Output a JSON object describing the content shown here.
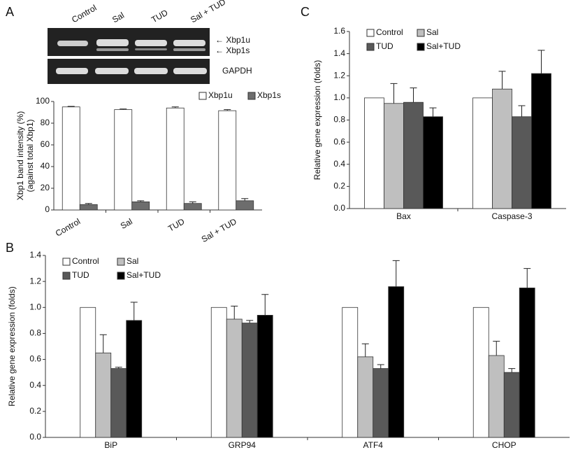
{
  "panel_labels": [
    "A",
    "B",
    "C"
  ],
  "gel": {
    "lanes": [
      "Control",
      "Sal",
      "TUD",
      "Sal + TUD"
    ],
    "bands": [
      "← Xbp1u",
      "← Xbp1s"
    ],
    "loading": "GAPDH"
  },
  "chart_data": [
    {
      "type": "bar",
      "ylabel": [
        "Xbp1 band intensity (%)",
        "(against total Xbp1)"
      ],
      "categories": [
        "Control",
        "Sal",
        "TUD",
        "Sal + TUD"
      ],
      "series": [
        {
          "name": "Xbp1u",
          "color": "#ffffff",
          "values": [
            95,
            92.5,
            94,
            91.5
          ],
          "errors": [
            0.5,
            0.6,
            1,
            1
          ]
        },
        {
          "name": "Xbp1s",
          "color": "#6d6d6d",
          "values": [
            5,
            7.5,
            6,
            8.5
          ],
          "errors": [
            1,
            1,
            1.5,
            2
          ]
        }
      ],
      "ylim": [
        0,
        100
      ],
      "yticks": [
        0,
        20,
        40,
        60,
        80,
        100
      ],
      "legend": "upper right"
    },
    {
      "type": "bar",
      "ylabel": "Relative gene expression (folds)",
      "categories": [
        "BiP",
        "GRP94",
        "ATF4",
        "CHOP"
      ],
      "series": [
        {
          "name": "Control",
          "color": "#ffffff",
          "values": [
            1,
            1,
            1,
            1
          ]
        },
        {
          "name": "Sal",
          "color": "#bfbfbf",
          "values": [
            0.65,
            0.91,
            0.62,
            0.63
          ],
          "errors": [
            0.14,
            0.1,
            0.1,
            0.11
          ]
        },
        {
          "name": "TUD",
          "color": "#595959",
          "values": [
            0.53,
            0.88,
            0.53,
            0.5
          ],
          "errors": [
            0.01,
            0.02,
            0.03,
            0.03
          ]
        },
        {
          "name": "Sal+TUD",
          "color": "#000000",
          "values": [
            0.9,
            0.94,
            1.16,
            1.15
          ],
          "errors": [
            0.14,
            0.16,
            0.2,
            0.15
          ]
        }
      ],
      "ylim": [
        0,
        1.4
      ],
      "yticks": [
        {
          "value": 0,
          "label": "0.0"
        },
        {
          "value": 0.2,
          "label": "0.2"
        },
        {
          "value": 0.4,
          "label": "0.4"
        },
        {
          "value": 0.6,
          "label": "0.6"
        },
        {
          "value": 0.8,
          "label": "0.8"
        },
        {
          "value": 1,
          "label": "1.0"
        },
        {
          "value": 1.2,
          "label": "1.2"
        },
        {
          "value": 1.4,
          "label": "1.4"
        }
      ],
      "legend": "upper left"
    },
    {
      "type": "bar",
      "ylabel": "Relative gene expression (folds)",
      "categories": [
        "Bax",
        "Caspase-3"
      ],
      "series": [
        {
          "name": "Control",
          "color": "#ffffff",
          "values": [
            1,
            1
          ]
        },
        {
          "name": "Sal",
          "color": "#bfbfbf",
          "values": [
            0.95,
            1.08
          ],
          "errors": [
            0.18,
            0.16
          ]
        },
        {
          "name": "TUD",
          "color": "#595959",
          "values": [
            0.96,
            0.83
          ],
          "errors": [
            0.13,
            0.1
          ]
        },
        {
          "name": "Sal+TUD",
          "color": "#000000",
          "values": [
            0.83,
            1.22
          ],
          "errors": [
            0.08,
            0.21
          ]
        }
      ],
      "ylim": [
        0,
        1.6
      ],
      "yticks": [
        {
          "value": 0,
          "label": "0.0"
        },
        {
          "value": 0.2,
          "label": "0.2"
        },
        {
          "value": 0.4,
          "label": "0.4"
        },
        {
          "value": 0.6,
          "label": "0.6"
        },
        {
          "value": 0.8,
          "label": "0.8"
        },
        {
          "value": 1,
          "label": "1.0"
        },
        {
          "value": 1.2,
          "label": "1.2"
        },
        {
          "value": 1.4,
          "label": "1.4"
        },
        {
          "value": 1.6,
          "label": "1.6"
        }
      ],
      "legend": "upper left"
    }
  ]
}
